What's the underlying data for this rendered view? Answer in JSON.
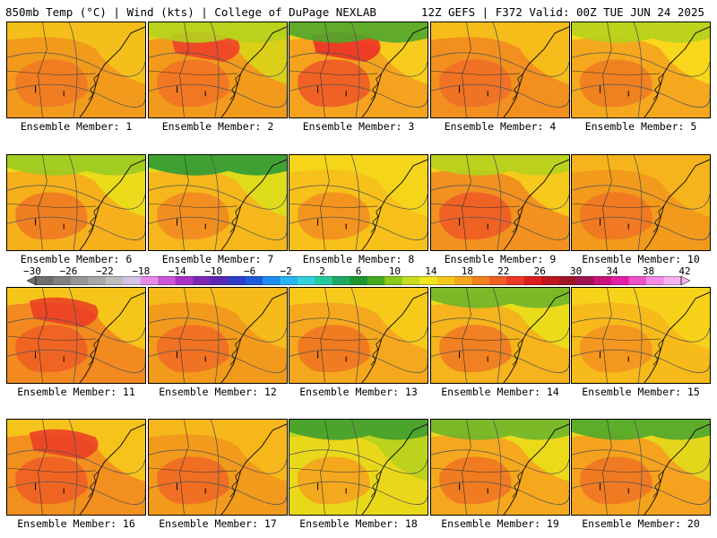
{
  "header": {
    "left": "850mb Temp (°C) | Wind (kts) | College of DuPage NEXLAB",
    "right": "12Z GEFS | F372 Valid: 00Z TUE JUN 24 2025"
  },
  "members": [
    {
      "label": "Ensemble Member: 1",
      "base": "#f29a1c",
      "warm": "#f07a22",
      "cool": "#f5c51a",
      "hot": "",
      "green": ""
    },
    {
      "label": "Ensemble Member: 2",
      "base": "#f29a1c",
      "warm": "#f27324",
      "cool": "#d8d818",
      "hot": "#ef3b2a",
      "green": "#b5d11d"
    },
    {
      "label": "Ensemble Member: 3",
      "base": "#f5a31e",
      "warm": "#ef5a26",
      "cool": "#f7d31c",
      "hot": "#ec2b27",
      "green": "#4fa82c"
    },
    {
      "label": "Ensemble Member: 4",
      "base": "#f28f1e",
      "warm": "#ef6f25",
      "cool": "#f7c51a",
      "hot": "",
      "green": ""
    },
    {
      "label": "Ensemble Member: 5",
      "base": "#f5a81d",
      "warm": "#f07c22",
      "cool": "#f9df1a",
      "hot": "",
      "green": "#b5d11d"
    },
    {
      "label": "Ensemble Member: 6",
      "base": "#f5b01c",
      "warm": "#f07a22",
      "cool": "#e9e31a",
      "hot": "",
      "green": "#9ccb22"
    },
    {
      "label": "Ensemble Member: 7",
      "base": "#f5b71b",
      "warm": "#f28a20",
      "cool": "#d9e21b",
      "hot": "",
      "green": "#2f9a36"
    },
    {
      "label": "Ensemble Member: 8",
      "base": "#f7c01a",
      "warm": "#f28f1f",
      "cool": "#f5d81a",
      "hot": "",
      "green": ""
    },
    {
      "label": "Ensemble Member: 9",
      "base": "#f29120",
      "warm": "#ef5c25",
      "cool": "#f7d21b",
      "hot": "",
      "green": "#b5d11d"
    },
    {
      "label": "Ensemble Member: 10",
      "base": "#f29a1c",
      "warm": "#f07522",
      "cool": "#f7b81c",
      "hot": "",
      "green": ""
    },
    {
      "label": "Ensemble Member: 11",
      "base": "#f28a1f",
      "warm": "#ef5f24",
      "cool": "#f7cf1a",
      "hot": "#ec3a26",
      "green": ""
    },
    {
      "label": "Ensemble Member: 12",
      "base": "#f29a1c",
      "warm": "#f06e23",
      "cool": "#f7c01a",
      "hot": "",
      "green": ""
    },
    {
      "label": "Ensemble Member: 13",
      "base": "#f5a81d",
      "warm": "#f07522",
      "cool": "#f7d01a",
      "hot": "",
      "green": ""
    },
    {
      "label": "Ensemble Member: 14",
      "base": "#f5b31c",
      "warm": "#f07a22",
      "cool": "#e9e31a",
      "hot": "",
      "green": "#6fb52a"
    },
    {
      "label": "Ensemble Member: 15",
      "base": "#f7ba1b",
      "warm": "#f29420",
      "cool": "#f7d61a",
      "hot": "",
      "green": ""
    },
    {
      "label": "Ensemble Member: 16",
      "base": "#f28f1e",
      "warm": "#ef5f24",
      "cool": "#f7cc1a",
      "hot": "#ec3a26",
      "green": ""
    },
    {
      "label": "Ensemble Member: 17",
      "base": "#f29a1c",
      "warm": "#f06a23",
      "cool": "#f7bc1a",
      "hot": "",
      "green": ""
    },
    {
      "label": "Ensemble Member: 18",
      "base": "#e9d81a",
      "warm": "#f5a31e",
      "cool": "#b5d11d",
      "hot": "",
      "green": "#3f9f30"
    },
    {
      "label": "Ensemble Member: 19",
      "base": "#f5a81d",
      "warm": "#f07522",
      "cool": "#e9e31a",
      "hot": "",
      "green": "#6fb52a"
    },
    {
      "label": "Ensemble Member: 20",
      "base": "#f5a31e",
      "warm": "#f07522",
      "cool": "#e1df1a",
      "hot": "",
      "green": "#4fa82c"
    }
  ],
  "colorbar": {
    "ticks": [
      "−30",
      "−26",
      "−22",
      "−18",
      "−14",
      "−10",
      "−6",
      "−2",
      "2",
      "6",
      "10",
      "14",
      "18",
      "22",
      "26",
      "30",
      "34",
      "38",
      "42"
    ],
    "colors": [
      "#6e6e6e",
      "#808080",
      "#969696",
      "#a8a8a8",
      "#bdbdbd",
      "#d6c2e6",
      "#e68ae6",
      "#cc55d9",
      "#a832c8",
      "#7d28b4",
      "#5a28b4",
      "#2e3cc8",
      "#1e5adc",
      "#1e8cf0",
      "#28b4f0",
      "#32d2dc",
      "#28c8a0",
      "#1eaa64",
      "#1e9632",
      "#46aa1e",
      "#8cc81e",
      "#c8dc1e",
      "#f0e61e",
      "#f5c81e",
      "#f5a51e",
      "#f0821e",
      "#ef5f23",
      "#ec3a26",
      "#dc1e1e",
      "#c0141e",
      "#a01428",
      "#a01450",
      "#c8147d",
      "#e61ea5",
      "#f050c8",
      "#f58ce6",
      "#f5b4f0"
    ]
  }
}
